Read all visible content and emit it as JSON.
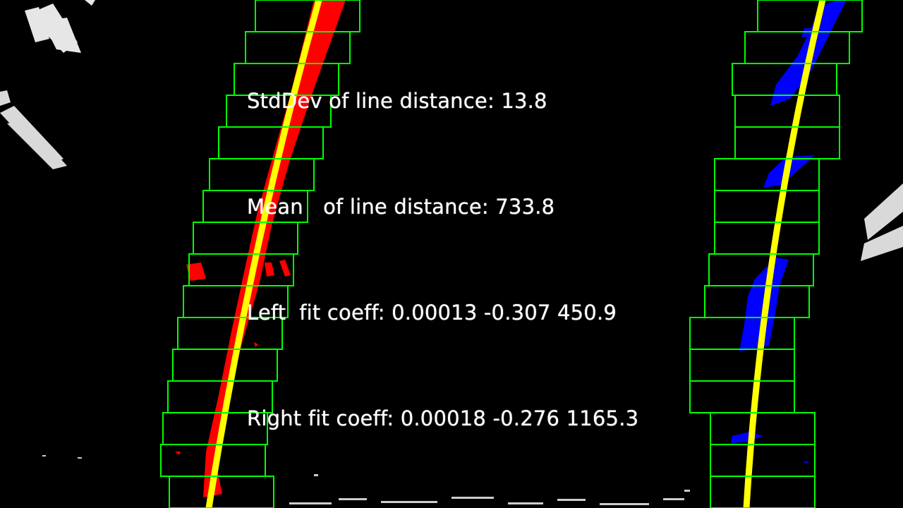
{
  "overlay": {
    "line1": "StdDev of line distance: 13.8",
    "line2": "Mean   of line distance: 733.8",
    "line3": "Left  fit coeff: 0.00013 -0.307 450.9",
    "line4": "Right fit coeff: 0.00018 -0.276 1165.3"
  },
  "colors": {
    "left_lane_pixels": "#ff0000",
    "right_lane_pixels": "#0000ff",
    "fit_line": "#ffff00",
    "search_windows": "#00ff00",
    "background": "#000000",
    "noise": "#ffffff"
  }
}
